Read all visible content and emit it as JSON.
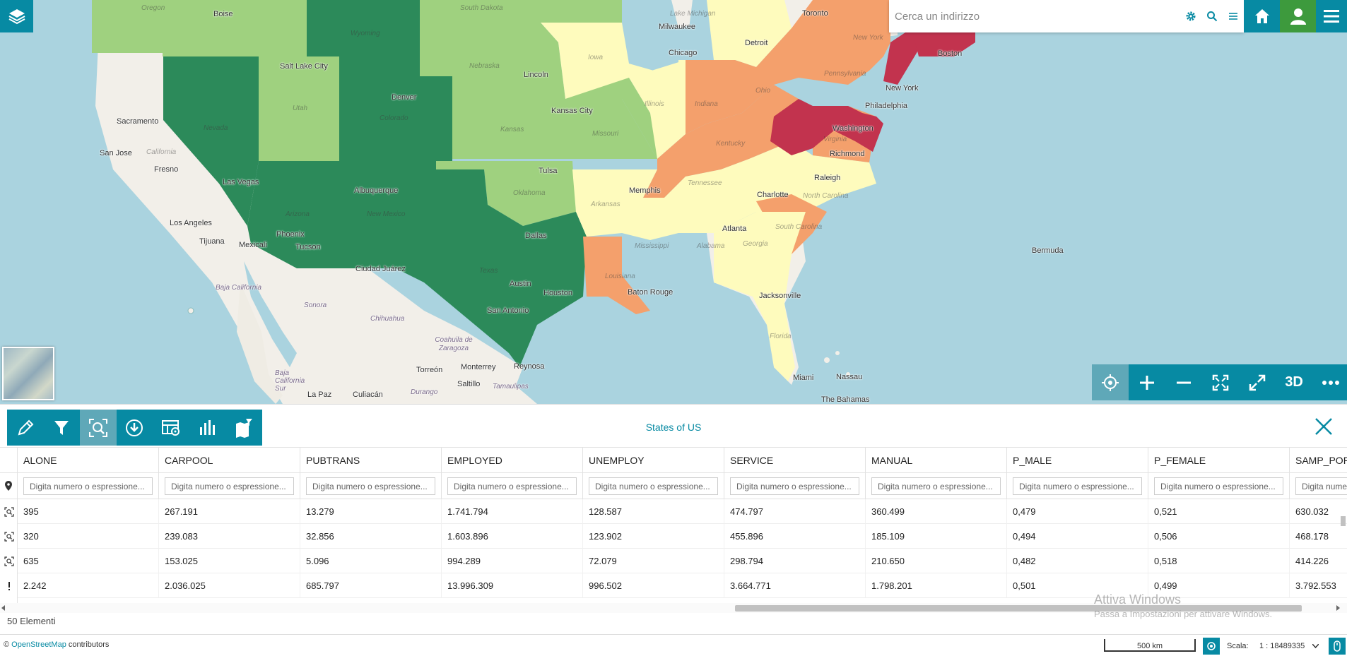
{
  "search": {
    "placeholder": "Cerca un indirizzo"
  },
  "map": {
    "city_labels": [
      "Boise",
      "Salt Lake City",
      "Sacramento",
      "San Jose",
      "Fresno",
      "Las Vegas",
      "Los Angeles",
      "Tijuana",
      "Mexicali",
      "Phoenix",
      "Tucson",
      "Denver",
      "Albuquerque",
      "Ciudad Juárez",
      "Dallas",
      "Austin",
      "San Antonio",
      "Houston",
      "Monterrey",
      "Reynosa",
      "Torreón",
      "Saltillo",
      "Culiacán",
      "La Paz",
      "Durango",
      "Kansas City",
      "Lincoln",
      "Tulsa",
      "Memphis",
      "Baton Rouge",
      "Atlanta",
      "Jacksonville",
      "Charlotte",
      "Raleigh",
      "Richmond",
      "Washington",
      "Philadelphia",
      "New York",
      "Boston",
      "Chicago",
      "Milwaukee",
      "Detroit",
      "Toronto",
      "Miami",
      "Nassau",
      "The Bahamas",
      "Bermuda"
    ],
    "state_labels": [
      "Oregon",
      "Wyoming",
      "South Dakota",
      "Nebraska",
      "Iowa",
      "Utah",
      "Colorado",
      "Kansas",
      "Missouri",
      "Illinois",
      "Indiana",
      "Ohio",
      "Nevada",
      "California",
      "Arizona",
      "New Mexico",
      "Texas",
      "Oklahoma",
      "Arkansas",
      "Tennessee",
      "Kentucky",
      "Virginia",
      "North Carolina",
      "South Carolina",
      "Georgia",
      "Alabama",
      "Mississippi",
      "Louisiana",
      "Florida",
      "Pennsylvania",
      "New York",
      "Lake Michigan"
    ],
    "region_labels": [
      "Baja California",
      "Baja California Sur",
      "Sonora",
      "Chihuahua",
      "Coahuila de Zaragoza",
      "Tamaulipas"
    ]
  },
  "nav": {
    "btn_3d": "3D"
  },
  "panel": {
    "title": "States of US",
    "filter_placeholder": "Digita numero o espressione...",
    "columns": [
      {
        "label": "ALONE",
        "values": [
          "395",
          "320",
          "635",
          "2.242"
        ]
      },
      {
        "label": "CARPOOL",
        "values": [
          "267.191",
          "239.083",
          "153.025",
          "2.036.025"
        ]
      },
      {
        "label": "PUBTRANS",
        "values": [
          "13.279",
          "32.856",
          "5.096",
          "685.797"
        ]
      },
      {
        "label": "EMPLOYED",
        "values": [
          "1.741.794",
          "1.603.896",
          "994.289",
          "13.996.309"
        ]
      },
      {
        "label": "UNEMPLOY",
        "values": [
          "128.587",
          "123.902",
          "72.079",
          "996.502"
        ]
      },
      {
        "label": "SERVICE",
        "values": [
          "474.797",
          "455.896",
          "298.794",
          "3.664.771"
        ]
      },
      {
        "label": "MANUAL",
        "values": [
          "360.499",
          "185.109",
          "210.650",
          "1.798.201"
        ]
      },
      {
        "label": "P_MALE",
        "values": [
          "0,479",
          "0,494",
          "0,482",
          "0,501"
        ]
      },
      {
        "label": "P_FEMALE",
        "values": [
          "0,521",
          "0,506",
          "0,518",
          "0,499"
        ]
      },
      {
        "label": "SAMP_POP",
        "values": [
          "630.032",
          "468.178",
          "414.226",
          "3.792.553"
        ]
      }
    ],
    "row_icons": [
      "zoom-to-feature-icon",
      "zoom-to-feature-icon",
      "zoom-to-feature-icon",
      "warning-icon"
    ],
    "count": "50 Elementi"
  },
  "watermark": {
    "line1": "Attiva Windows",
    "line2": "Passa a Impostazioni per attivare Windows."
  },
  "footer": {
    "attribution_prefix": "©",
    "attribution_link": "OpenStreetMap",
    "attribution_suffix": "contributors",
    "scalebar": "500 km",
    "scale_label": "Scala:",
    "scale_value": "1 : 18489335"
  },
  "colors": {
    "accent": "#078aa3",
    "home_btn": "#078aa3",
    "user_btn": "#3d9a3d",
    "choropleth": [
      "#2c8a5a",
      "#9fd17f",
      "#fefbbd",
      "#f4a06c",
      "#c2334e"
    ]
  }
}
